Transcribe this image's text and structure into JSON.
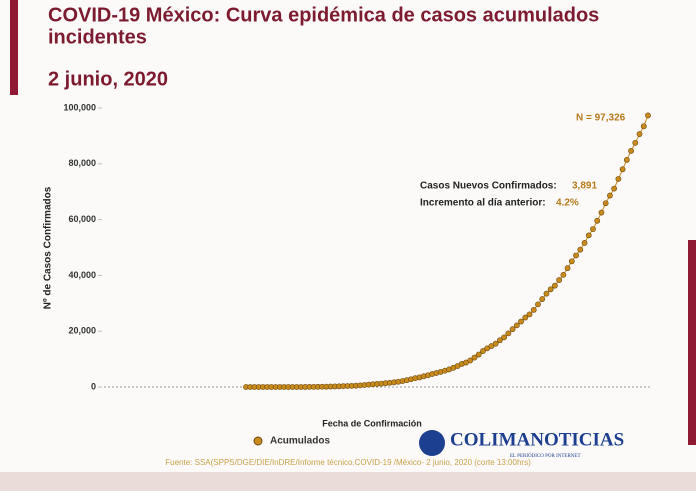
{
  "chart_data": {
    "type": "line",
    "title": [
      "COVID-19 México: Curva epidémica de casos acumulados",
      "incidentes"
    ],
    "subtitle": "2 junio, 2020",
    "y_label": "Nº de Casos Confirmados",
    "x_label": "Fecha de Confirmación",
    "annotations": [
      "N = 97,326",
      "Casos Nuevos Confirmados:",
      "3,891",
      "Incremento al día anterior:",
      "4.2%"
    ],
    "source": "Fuente: SSA(SPPS/DGE/DIE/InDRE/Informe técnico.COVID-19 /México- 2 junio, 2020 (corte 13:00hrs)",
    "watermark": [
      "COLIMANOTICIAS",
      "EL PERIÓDICO POR INTERNET"
    ],
    "ylim": [
      0,
      100000
    ],
    "yticks": [
      0,
      {
        "value": 20000,
        "label": "20,000"
      },
      {
        "value": 40000,
        "label": "40,000"
      },
      {
        "value": 60000,
        "label": "60,000"
      },
      {
        "value": 80000,
        "label": "80,000"
      },
      {
        "value": 100000,
        "label": "100,000"
      }
    ],
    "categories": [
      null,
      null,
      null,
      null,
      null,
      null,
      null,
      null,
      null,
      null,
      null,
      null,
      null,
      null,
      null,
      null,
      null,
      null,
      null,
      null,
      null,
      null,
      null,
      null,
      null,
      null,
      null,
      null,
      null,
      null,
      null,
      null,
      null,
      null,
      null,
      null,
      null,
      null,
      null,
      null,
      null,
      null,
      null,
      null,
      null,
      null,
      null,
      null,
      null,
      null,
      null,
      null,
      null,
      null,
      null,
      null,
      null,
      null,
      null,
      null,
      null,
      null,
      null,
      null,
      null,
      null,
      null,
      null,
      null,
      null,
      null,
      null,
      null,
      null,
      null,
      null,
      null,
      null,
      null,
      null,
      null,
      null,
      null,
      null,
      null,
      null,
      null,
      null,
      null,
      null,
      null,
      null,
      null,
      null,
      null,
      null
    ],
    "series": [
      {
        "name": "Acumulados",
        "color": "#c98a1c",
        "values": [
          1,
          4,
          5,
          5,
          5,
          5,
          5,
          6,
          7,
          7,
          7,
          7,
          11,
          12,
          26,
          41,
          53,
          82,
          93,
          118,
          164,
          203,
          251,
          316,
          367,
          405,
          475,
          585,
          717,
          848,
          993,
          1094,
          1215,
          1378,
          1510,
          1688,
          1890,
          2143,
          2439,
          2785,
          3181,
          3441,
          3844,
          4219,
          4661,
          5014,
          5399,
          5847,
          6297,
          6875,
          7497,
          8261,
          8772,
          9501,
          10544,
          11633,
          12872,
          13842,
          14677,
          15529,
          16752,
          17799,
          19224,
          20739,
          22088,
          23471,
          24905,
          26025,
          27634,
          29616,
          31522,
          33460,
          35022,
          36327,
          38324,
          40186,
          42595,
          45032,
          47144,
          49219,
          51633,
          54346,
          56594,
          59567,
          62527,
          65856,
          68620,
          71105,
          74560,
          78023,
          81400,
          84627,
          87512,
          90664,
          93435,
          97326
        ]
      }
    ]
  }
}
